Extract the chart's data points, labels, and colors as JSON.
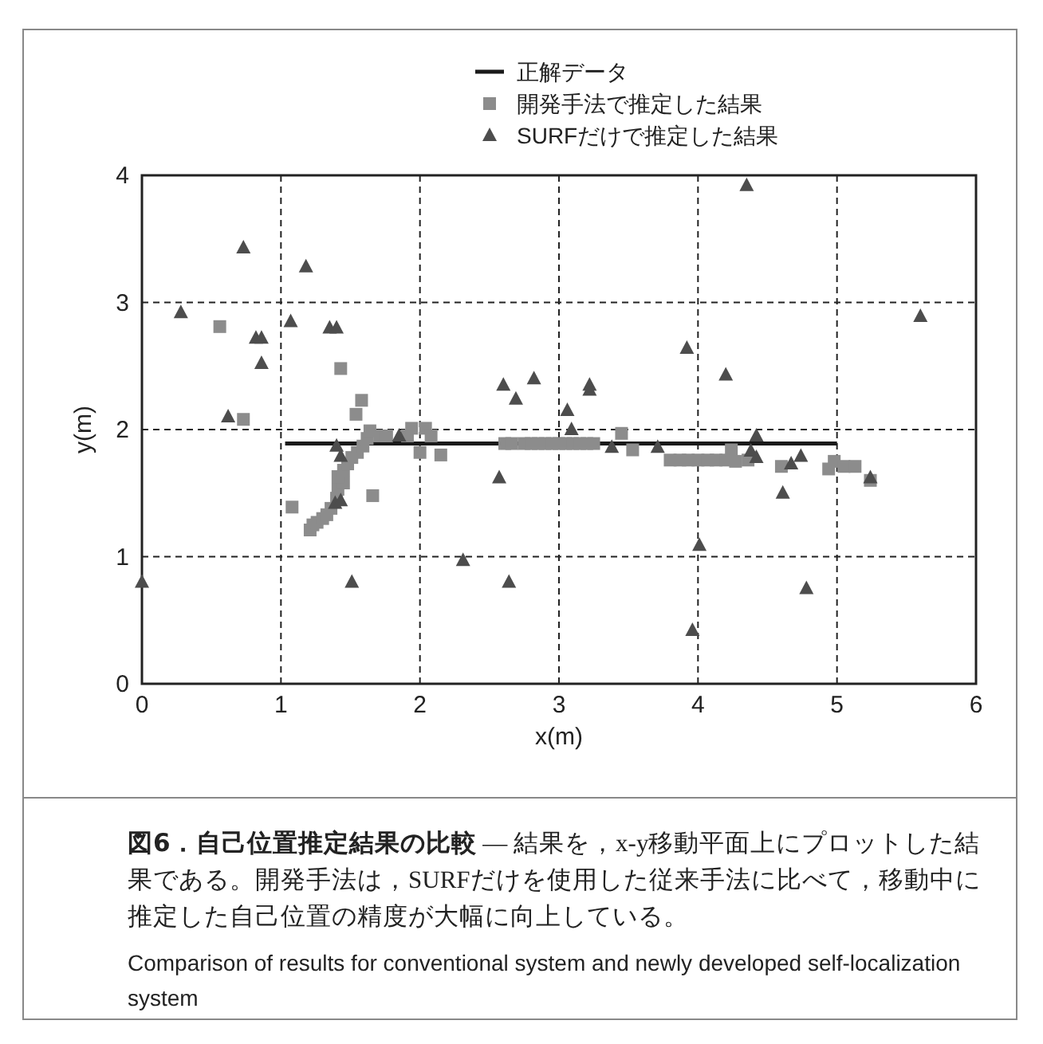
{
  "chart_data": {
    "type": "scatter",
    "title": "図6．自己位置推定結果の比較",
    "subtitle": "— 結果を，x‑y移動平面上にプロットした結果である。開発手法は，SURFだけを使用した従来手法に比べて，移動中に推定した自己位置の精度が大幅に向上している。",
    "annotations": [
      "Comparison of results for conventional system and newly developed self-localization system"
    ],
    "xlabel": "x(m)",
    "ylabel": "y(m)",
    "xlim": [
      0,
      6
    ],
    "ylim": [
      0,
      4
    ],
    "xticks": [
      0,
      1,
      2,
      3,
      4,
      5,
      6
    ],
    "yticks": [
      0,
      1,
      2,
      3,
      4
    ],
    "grid": true,
    "legend": "top right",
    "series": [
      {
        "name": "正解データ",
        "type": "line",
        "marker": "none",
        "color": "#1a1a1a",
        "x": [
          1.03,
          5.0
        ],
        "values": [
          1.89,
          1.89
        ]
      },
      {
        "name": "開発手法で推定した結果",
        "marker": "square",
        "color": "#8c8c8c",
        "x": [
          0.56,
          0.73,
          1.43,
          1.08,
          1.58,
          1.54,
          1.66,
          1.21,
          1.23,
          1.26,
          1.3,
          1.33,
          1.36,
          1.4,
          1.41,
          1.45,
          1.41,
          1.45,
          1.48,
          1.51,
          1.55,
          1.59,
          1.62,
          1.64,
          1.71,
          1.76,
          1.91,
          1.94,
          2.04,
          2.08,
          2.0,
          2.15,
          2.61,
          2.66,
          2.75,
          2.8,
          2.85,
          2.9,
          2.95,
          3.0,
          3.05,
          3.1,
          3.15,
          3.2,
          3.25,
          3.45,
          3.53,
          3.8,
          3.87,
          3.93,
          4.0,
          4.07,
          4.13,
          4.2,
          4.24,
          4.27,
          4.36,
          4.6,
          4.94,
          4.98,
          5.05,
          5.13,
          5.24
        ],
        "values": [
          2.81,
          2.08,
          2.48,
          1.39,
          2.23,
          2.12,
          1.48,
          1.21,
          1.25,
          1.27,
          1.3,
          1.33,
          1.38,
          1.46,
          1.53,
          1.58,
          1.63,
          1.68,
          1.73,
          1.78,
          1.82,
          1.87,
          1.93,
          1.99,
          1.95,
          1.95,
          1.95,
          2.01,
          2.01,
          1.95,
          1.82,
          1.8,
          1.89,
          1.89,
          1.89,
          1.89,
          1.89,
          1.89,
          1.89,
          1.89,
          1.89,
          1.89,
          1.89,
          1.89,
          1.89,
          1.97,
          1.84,
          1.76,
          1.76,
          1.76,
          1.76,
          1.76,
          1.76,
          1.76,
          1.84,
          1.75,
          1.76,
          1.71,
          1.69,
          1.75,
          1.71,
          1.71,
          1.6
        ]
      },
      {
        "name": "SURFだけで推定した結果",
        "marker": "triangle",
        "color": "#4d4d4d",
        "x": [
          0.0,
          0.28,
          0.73,
          0.62,
          0.82,
          0.86,
          0.86,
          1.07,
          1.18,
          1.35,
          1.4,
          1.4,
          1.43,
          1.39,
          1.43,
          1.51,
          1.85,
          2.31,
          2.6,
          2.69,
          2.82,
          2.57,
          2.64,
          3.06,
          3.09,
          3.22,
          3.22,
          3.38,
          3.71,
          3.92,
          4.01,
          3.96,
          4.2,
          4.42,
          4.38,
          4.42,
          4.67,
          4.74,
          4.61,
          4.78,
          5.24,
          5.6,
          4.35
        ],
        "values": [
          0.8,
          2.92,
          3.43,
          2.1,
          2.72,
          2.72,
          2.52,
          2.85,
          3.28,
          2.8,
          2.8,
          1.87,
          1.79,
          1.42,
          1.44,
          0.8,
          1.95,
          0.97,
          2.35,
          2.24,
          2.4,
          1.62,
          0.8,
          2.15,
          2.0,
          2.35,
          2.31,
          1.86,
          1.86,
          2.64,
          1.09,
          0.42,
          2.43,
          1.95,
          1.83,
          1.78,
          1.73,
          1.79,
          1.5,
          0.75,
          1.62,
          2.89,
          3.92
        ]
      }
    ]
  }
}
